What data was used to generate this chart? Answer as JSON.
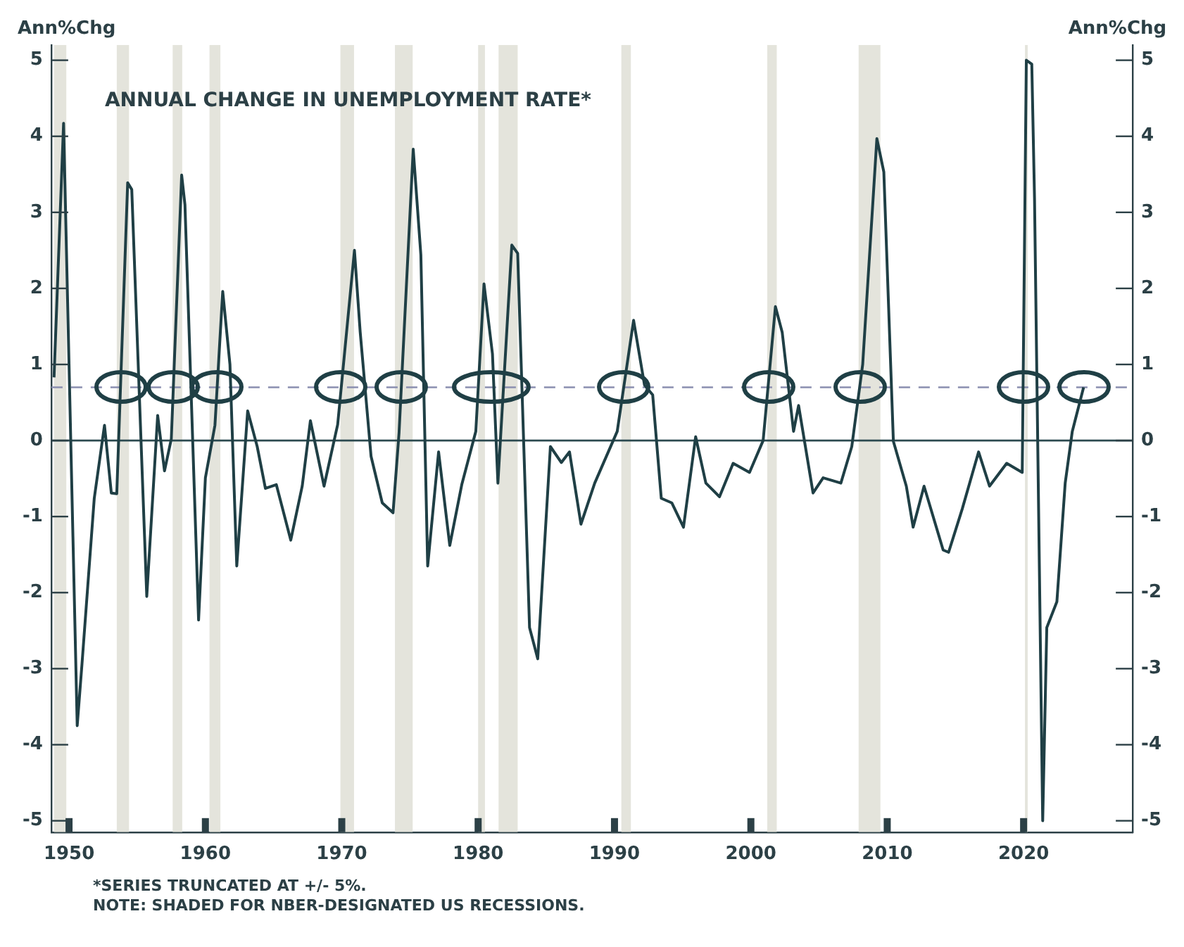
{
  "chart_data": {
    "type": "line",
    "title": "ANNUAL CHANGE IN UNEMPLOYMENT RATE*",
    "ylabel": "Ann%Chg",
    "y2label": "Ann%Chg",
    "annotations": [
      "*SERIES TRUNCATED AT +/- 5%.",
      "NOTE: SHADED FOR NBER-DESIGNATED US RECESSIONS."
    ],
    "series": [
      {
        "color": "#1f3f45",
        "x": [
          1948.9,
          1949.6,
          1949.75,
          1950.6,
          1950.95,
          1951.85,
          1952.6,
          1953.1,
          1953.5,
          1954.3,
          1954.6,
          1955.7,
          1956.5,
          1957.0,
          1957.5,
          1958.26,
          1958.5,
          1959.5,
          1960.0,
          1960.7,
          1961.27,
          1961.8,
          1962.3,
          1963.1,
          1963.8,
          1964.4,
          1965.2,
          1966.26,
          1967.1,
          1967.7,
          1968.7,
          1969.7,
          1970.93,
          1971.35,
          1972.15,
          1972.97,
          1973.76,
          1974.2,
          1975.24,
          1975.8,
          1976.3,
          1977.1,
          1977.92,
          1978.8,
          1979.83,
          1980.43,
          1981.05,
          1981.45,
          1982.47,
          1982.9,
          1983.77,
          1984.37,
          1985.3,
          1986.1,
          1986.7,
          1987.54,
          1988.55,
          1990.2,
          1991.4,
          1992.2,
          1992.8,
          1993.43,
          1994.2,
          1995.06,
          1995.95,
          1996.7,
          1997.7,
          1998.7,
          1999.9,
          2000.9,
          2001.8,
          2002.3,
          2003.13,
          2003.5,
          2004.56,
          2005.3,
          2006.6,
          2007.4,
          2008.2,
          2009.24,
          2009.75,
          2010.45,
          2011.4,
          2011.9,
          2012.7,
          2014.1,
          2014.5,
          2015.5,
          2016.7,
          2017.5,
          2018.76,
          2019.9,
          2020.2,
          2020.6,
          2020.8,
          2021.4,
          2021.7,
          2022.44,
          2023.05,
          2023.57,
          2024.4
        ],
        "values": [
          0.83,
          4.17,
          2.98,
          -3.75,
          -2.94,
          -0.76,
          0.2,
          -0.69,
          -0.7,
          3.39,
          3.3,
          -2.05,
          0.33,
          -0.4,
          0.02,
          3.49,
          3.1,
          -2.36,
          -0.49,
          0.2,
          1.96,
          1.0,
          -1.65,
          0.39,
          -0.08,
          -0.63,
          -0.58,
          -1.31,
          -0.6,
          0.26,
          -0.6,
          0.21,
          2.5,
          1.43,
          -0.21,
          -0.82,
          -0.95,
          0.1,
          3.83,
          2.44,
          -1.65,
          -0.15,
          -1.38,
          -0.58,
          0.12,
          2.06,
          1.14,
          -0.56,
          2.57,
          2.46,
          -2.46,
          -2.87,
          -0.08,
          -0.29,
          -0.15,
          -1.1,
          -0.56,
          0.12,
          1.58,
          0.73,
          0.6,
          -0.76,
          -0.82,
          -1.14,
          0.05,
          -0.56,
          -0.74,
          -0.3,
          -0.42,
          0.0,
          1.76,
          1.42,
          0.12,
          0.46,
          -0.69,
          -0.49,
          -0.56,
          -0.08,
          1.0,
          3.97,
          3.53,
          -0.01,
          -0.6,
          -1.14,
          -0.6,
          -1.44,
          -1.47,
          -0.9,
          -0.15,
          -0.6,
          -0.3,
          -0.42,
          5.0,
          4.95,
          3.19,
          -5.0,
          -2.46,
          -2.12,
          -0.56,
          0.12,
          0.7
        ]
      }
    ],
    "xlim": [
      1948.7,
      2028
    ],
    "xticks": [
      1950,
      1960,
      1970,
      1980,
      1990,
      2000,
      2010,
      2020
    ],
    "ylim": [
      -5.15,
      5.2
    ],
    "yticks": [
      -5,
      -4,
      -3,
      -2,
      -1,
      0,
      1,
      2,
      3,
      4,
      5
    ],
    "y2lim": [
      -5.15,
      5.2
    ],
    "y2ticks": [
      -5,
      -4,
      -3,
      -2,
      -1,
      0,
      1,
      2,
      3,
      4,
      5
    ],
    "ref_lines": [
      {
        "axis": "y",
        "value": 0,
        "color": "#2c4a50",
        "line_style": "solid"
      },
      {
        "axis": "y",
        "value": 0.7,
        "color": "#8a8fb0",
        "line_style": "dashed"
      }
    ],
    "bands": [
      {
        "axis": "x",
        "from": 1948.9,
        "to": 1949.8,
        "color": "#e4e4dc"
      },
      {
        "axis": "x",
        "from": 1953.5,
        "to": 1954.4,
        "color": "#e4e4dc"
      },
      {
        "axis": "x",
        "from": 1957.6,
        "to": 1958.3,
        "color": "#e4e4dc"
      },
      {
        "axis": "x",
        "from": 1960.3,
        "to": 1961.1,
        "color": "#e4e4dc"
      },
      {
        "axis": "x",
        "from": 1969.9,
        "to": 1970.9,
        "color": "#e4e4dc"
      },
      {
        "axis": "x",
        "from": 1973.9,
        "to": 1975.2,
        "color": "#e4e4dc"
      },
      {
        "axis": "x",
        "from": 1980.0,
        "to": 1980.5,
        "color": "#e4e4dc"
      },
      {
        "axis": "x",
        "from": 1981.5,
        "to": 1982.9,
        "color": "#e4e4dc"
      },
      {
        "axis": "x",
        "from": 1990.5,
        "to": 1991.2,
        "color": "#e4e4dc"
      },
      {
        "axis": "x",
        "from": 2001.2,
        "to": 2001.9,
        "color": "#e4e4dc"
      },
      {
        "axis": "x",
        "from": 2007.9,
        "to": 2009.5,
        "color": "#e4e4dc"
      },
      {
        "axis": "x",
        "from": 2020.1,
        "to": 2020.3,
        "color": "#e4e4dc"
      }
    ],
    "grid": false,
    "legend": false,
    "marker": "none",
    "line_style": "solid"
  }
}
